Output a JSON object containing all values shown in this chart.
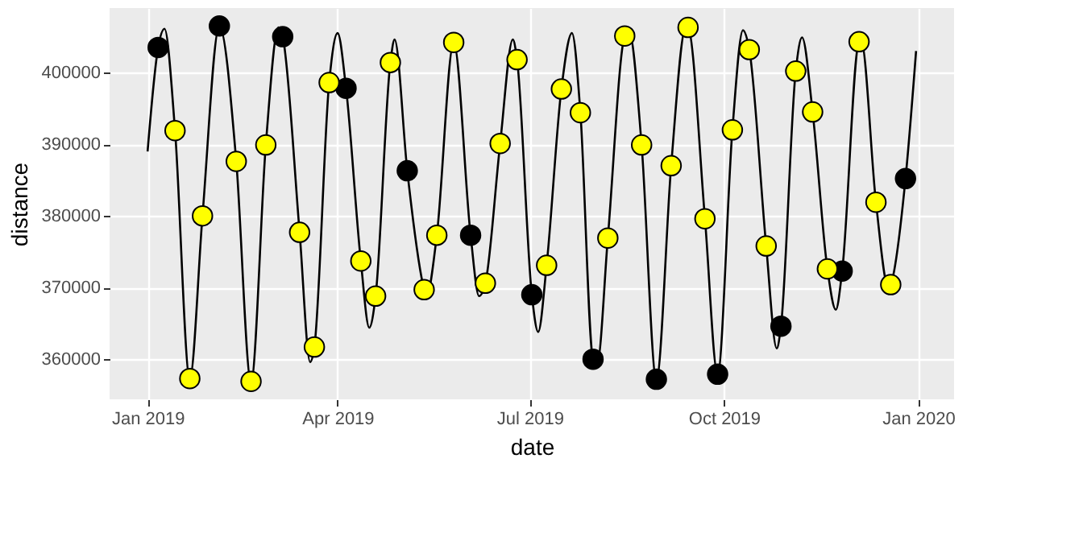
{
  "chart_data": {
    "type": "line",
    "xlabel": "date",
    "ylabel": "distance",
    "xlim": [
      "2018-12-14",
      "2020-01-18"
    ],
    "xticks": [
      {
        "value": "2019-01-01",
        "label": "Jan 2019"
      },
      {
        "value": "2019-04-01",
        "label": "Apr 2019"
      },
      {
        "value": "2019-07-01",
        "label": "Jul 2019"
      },
      {
        "value": "2019-10-01",
        "label": "Oct 2019"
      },
      {
        "value": "2020-01-01",
        "label": "Jan 2020"
      }
    ],
    "ylim": [
      354400,
      409000
    ],
    "yticks": [
      360000,
      370000,
      380000,
      390000,
      400000
    ],
    "grid": true,
    "series": [
      {
        "color": "#000000",
        "marker": "none",
        "line_style": "solid",
        "x": [
          "2019-01-01",
          "2019-01-06",
          "2019-01-09",
          "2019-01-14",
          "2019-01-21",
          "2019-01-27",
          "2019-02-04",
          "2019-02-12",
          "2019-02-19",
          "2019-02-26",
          "2019-03-04",
          "2019-03-06",
          "2019-03-14",
          "2019-03-19",
          "2019-03-21",
          "2019-03-28",
          "2019-04-01",
          "2019-04-05",
          "2019-04-12",
          "2019-04-16",
          "2019-04-19",
          "2019-04-26",
          "2019-04-28",
          "2019-05-04",
          "2019-05-12",
          "2019-05-13",
          "2019-05-18",
          "2019-05-26",
          "2019-06-03",
          "2019-06-07",
          "2019-06-10",
          "2019-06-17",
          "2019-06-23",
          "2019-06-25",
          "2019-07-02",
          "2019-07-05",
          "2019-07-09",
          "2019-07-16",
          "2019-07-21",
          "2019-07-25",
          "2019-07-31",
          "2019-08-02",
          "2019-08-07",
          "2019-08-15",
          "2019-08-17",
          "2019-08-23",
          "2019-08-30",
          "2019-09-06",
          "2019-09-13",
          "2019-09-14",
          "2019-09-22",
          "2019-09-28",
          "2019-10-05",
          "2019-10-10",
          "2019-10-13",
          "2019-10-21",
          "2019-10-26",
          "2019-10-28",
          "2019-11-04",
          "2019-11-07",
          "2019-11-12",
          "2019-11-19",
          "2019-11-23",
          "2019-11-26",
          "2019-12-04",
          "2019-12-05",
          "2019-12-12",
          "2019-12-18",
          "2019-12-19",
          "2019-12-26",
          "2019-12-31"
        ],
        "values": [
          389000,
          403500,
          406100,
          391900,
          357300,
          380000,
          406500,
          387600,
          356900,
          389900,
          406300,
          405000,
          377700,
          359600,
          361700,
          398600,
          405500,
          397800,
          373700,
          364400,
          368800,
          401400,
          404600,
          386300,
          369700,
          368700,
          377300,
          404200,
          377300,
          368800,
          370600,
          390100,
          404600,
          401800,
          369000,
          363800,
          373100,
          397700,
          405500,
          394400,
          360000,
          359500,
          376900,
          405100,
          405800,
          389900,
          357200,
          387000,
          406400,
          406300,
          379600,
          357900,
          392000,
          405900,
          403200,
          375800,
          361500,
          364600,
          400200,
          404900,
          394500,
          372600,
          366900,
          372300,
          404300,
          404400,
          381900,
          369900,
          370400,
          385200,
          403000
        ]
      },
      {
        "type": "scatter",
        "color": "#000000",
        "marker": "circle",
        "x": [
          "2019-01-06",
          "2019-02-04",
          "2019-03-06",
          "2019-04-05",
          "2019-05-04",
          "2019-06-03",
          "2019-07-02",
          "2019-07-31",
          "2019-08-30",
          "2019-09-28",
          "2019-10-28",
          "2019-11-26",
          "2019-12-26"
        ],
        "values": [
          403500,
          406500,
          405000,
          397800,
          386300,
          377300,
          369000,
          360000,
          357200,
          357900,
          364600,
          372300,
          385200
        ]
      },
      {
        "type": "scatter",
        "color": "#ffff00",
        "marker": "circle",
        "x": [
          "2019-01-21",
          "2019-02-19",
          "2019-03-21",
          "2019-04-19",
          "2019-05-18",
          "2019-06-17",
          "2019-07-16",
          "2019-08-15",
          "2019-09-14",
          "2019-10-13",
          "2019-11-12",
          "2019-12-12"
        ],
        "values": [
          357300,
          356900,
          361700,
          368800,
          377300,
          390100,
          397700,
          405100,
          406300,
          403200,
          394500,
          381900
        ]
      },
      {
        "type": "scatter",
        "color": "#ffff00",
        "marker": "circle",
        "x": [
          "2019-01-14",
          "2019-02-12",
          "2019-03-14",
          "2019-04-12",
          "2019-05-12",
          "2019-06-10",
          "2019-07-09",
          "2019-08-07",
          "2019-09-06",
          "2019-10-05",
          "2019-11-04",
          "2019-12-04"
        ],
        "values": [
          391900,
          387600,
          377700,
          373700,
          369700,
          370600,
          373100,
          376900,
          387000,
          392000,
          400200,
          404300
        ]
      },
      {
        "type": "scatter",
        "color": "#ffff00",
        "marker": "circle",
        "x": [
          "2019-01-27",
          "2019-02-26",
          "2019-03-28",
          "2019-04-26",
          "2019-05-26",
          "2019-06-25",
          "2019-07-25",
          "2019-08-23",
          "2019-09-22",
          "2019-10-21",
          "2019-11-19",
          "2019-12-19"
        ],
        "values": [
          380000,
          389900,
          398600,
          401400,
          404200,
          401800,
          394400,
          389900,
          379600,
          375800,
          372600,
          370400
        ]
      }
    ]
  }
}
